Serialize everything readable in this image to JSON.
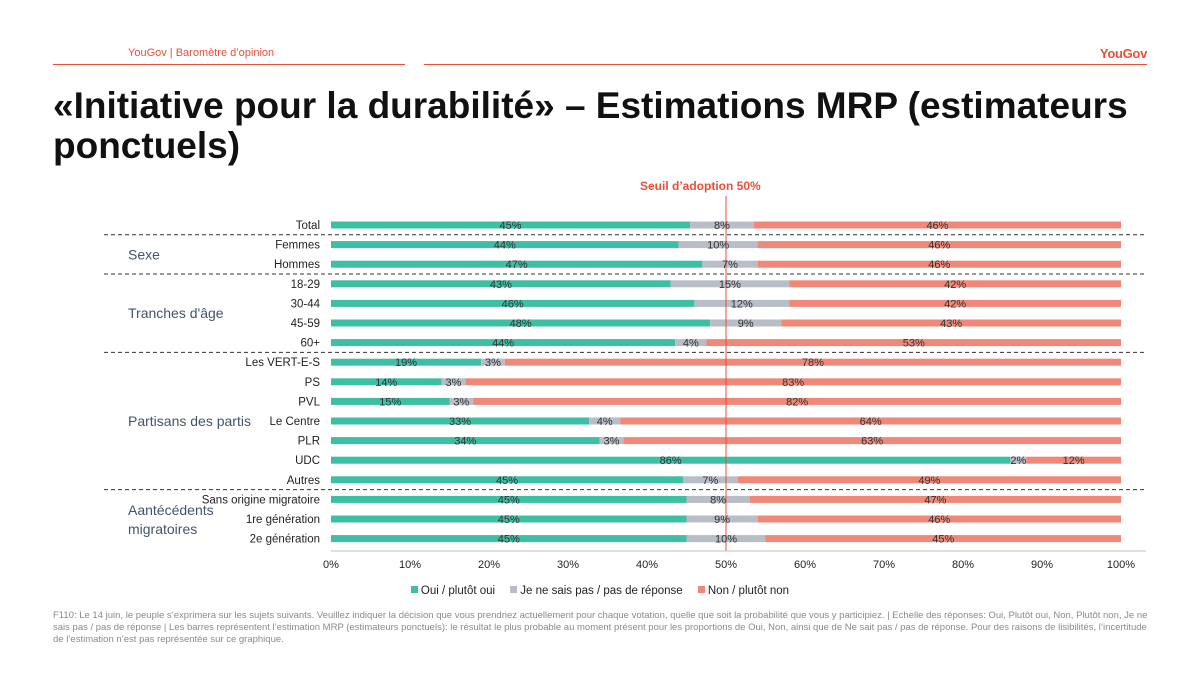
{
  "header": {
    "left_text": "YouGov | Baromètre d’opinion",
    "logo_text": "YouGov"
  },
  "title": "«Initiative pour la durabilité» – Estimations MRP (estimateurs ponctuels)",
  "threshold_label": "Seuil d’adoption 50%",
  "colors": {
    "oui": "#3dbfa3",
    "nsp": "#b8bdc6",
    "non": "#ef8878",
    "accent": "#e8503a",
    "group_text": "#44546a"
  },
  "chart_data": {
    "type": "bar",
    "orientation": "horizontal-stacked-100",
    "xlim": [
      0,
      100
    ],
    "x_ticks": [
      "0%",
      "10%",
      "20%",
      "30%",
      "40%",
      "50%",
      "60%",
      "70%",
      "80%",
      "90%",
      "100%"
    ],
    "threshold": 50,
    "categories": [
      "Total",
      "Femmes",
      "Hommes",
      "18-29",
      "30-44",
      "45-59",
      "60+",
      "Les VERT-E-S",
      "PS",
      "PVL",
      "Le Centre",
      "PLR",
      "UDC",
      "Autres",
      "Sans origine migratoire",
      "1re génération",
      "2e génération"
    ],
    "groups": [
      {
        "label": "Sexe",
        "rows": [
          1,
          2
        ]
      },
      {
        "label": "Tranches d'âge",
        "rows": [
          3,
          6
        ]
      },
      {
        "label": "Partisans des partis",
        "rows": [
          7,
          13
        ]
      },
      {
        "label": "Aantécédents migratoires",
        "rows": [
          14,
          16
        ]
      }
    ],
    "separators_after": [
      0,
      2,
      6,
      13
    ],
    "series": [
      {
        "name": "Oui / plutôt oui",
        "values": [
          45,
          44,
          47,
          43,
          46,
          48,
          44,
          19,
          14,
          15,
          33,
          34,
          86,
          45,
          45,
          45,
          45
        ]
      },
      {
        "name": "Je ne sais pas / pas de réponse",
        "values": [
          8,
          10,
          7,
          15,
          12,
          9,
          4,
          3,
          3,
          3,
          4,
          3,
          2,
          7,
          8,
          9,
          10
        ]
      },
      {
        "name": "Non / plutôt non",
        "values": [
          46,
          46,
          46,
          42,
          42,
          43,
          53,
          78,
          83,
          82,
          64,
          63,
          12,
          49,
          47,
          46,
          45
        ]
      }
    ]
  },
  "footnote": "F110: Le 14 juin, le peuple s’exprimera sur les sujets suivants. Veuillez indiquer la décision que vous prendriez actuellement pour chaque votation, quelle que soit la probabilité que vous y participiez. | Echelle des réponses: Oui, Plutôt oui, Non, Plutôt non, Je ne sais pas / pas de réponse | Les barres représentent l’estimation MRP (estimateurs ponctuels): le résultat le plus probable au moment présent pour les proportions de Oui, Non, ainsi que de Ne sait pas / pas de réponse. Pour des raisons de lisibilités, l’incertitude de l’estimation n’est pas représentée sur ce graphique."
}
